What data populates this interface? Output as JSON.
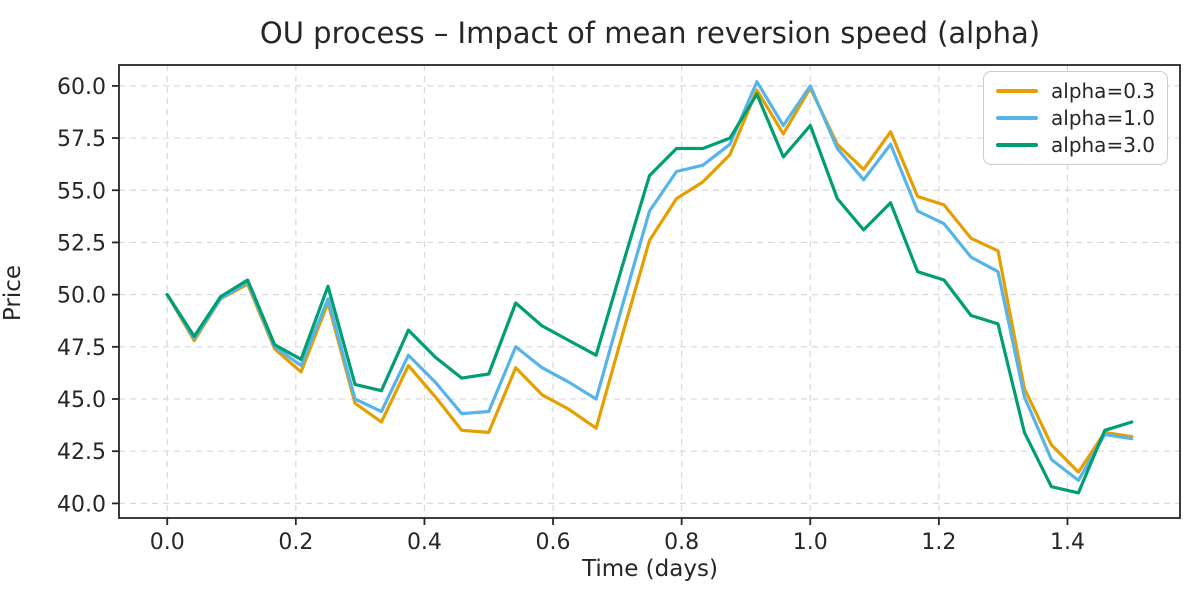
{
  "title": "OU process – Impact of mean reversion speed (alpha)",
  "colors": {
    "background": "#ffffff",
    "text": "#262626",
    "spine": "#262626",
    "grid": "#d9d9d9",
    "legend_border": "#cccccc",
    "series_orange": "#E69F00",
    "series_blue": "#56B4E9",
    "series_green": "#009E73"
  },
  "chart_data": {
    "type": "line",
    "title": "OU process – Impact of mean reversion speed (alpha)",
    "xlabel": "Time (days)",
    "ylabel": "Price",
    "xlim": [
      -0.075,
      1.575
    ],
    "ylim": [
      39.3,
      61.0
    ],
    "grid": true,
    "grid_style": "dashed",
    "legend_position": "upper right",
    "xticks": [
      0.0,
      0.2,
      0.4,
      0.6,
      0.8,
      1.0,
      1.2,
      1.4
    ],
    "xtick_labels": [
      "0.0",
      "0.2",
      "0.4",
      "0.6",
      "0.8",
      "1.0",
      "1.2",
      "1.4"
    ],
    "yticks": [
      40.0,
      42.5,
      45.0,
      47.5,
      50.0,
      52.5,
      55.0,
      57.5,
      60.0
    ],
    "ytick_labels": [
      "40.0",
      "42.5",
      "45.0",
      "47.5",
      "50.0",
      "52.5",
      "55.0",
      "57.5",
      "60.0"
    ],
    "x": [
      0.0,
      0.042,
      0.083,
      0.125,
      0.167,
      0.208,
      0.25,
      0.292,
      0.333,
      0.375,
      0.417,
      0.458,
      0.5,
      0.542,
      0.583,
      0.625,
      0.667,
      0.708,
      0.75,
      0.792,
      0.833,
      0.875,
      0.917,
      0.958,
      1.0,
      1.042,
      1.083,
      1.125,
      1.167,
      1.208,
      1.25,
      1.292,
      1.333,
      1.375,
      1.417,
      1.458,
      1.5
    ],
    "series": [
      {
        "name": "alpha=0.3",
        "color": "#E69F00",
        "values": [
          50.0,
          47.8,
          49.8,
          50.5,
          47.4,
          46.3,
          49.6,
          44.8,
          43.9,
          46.6,
          45.1,
          43.5,
          43.4,
          46.5,
          45.2,
          44.5,
          43.6,
          48.1,
          52.6,
          54.6,
          55.4,
          56.7,
          59.8,
          57.7,
          59.9,
          57.2,
          56.0,
          57.8,
          54.7,
          54.3,
          52.7,
          52.1,
          45.5,
          42.8,
          41.5,
          43.4,
          43.2
        ]
      },
      {
        "name": "alpha=1.0",
        "color": "#56B4E9",
        "values": [
          50.0,
          47.9,
          49.8,
          50.6,
          47.5,
          46.6,
          49.8,
          45.0,
          44.4,
          47.1,
          45.8,
          44.3,
          44.4,
          47.5,
          46.5,
          45.8,
          45.0,
          49.5,
          54.0,
          55.9,
          56.2,
          57.2,
          60.2,
          58.1,
          60.0,
          57.0,
          55.5,
          57.2,
          54.0,
          53.4,
          51.8,
          51.1,
          45.1,
          42.1,
          41.1,
          43.3,
          43.1
        ]
      },
      {
        "name": "alpha=3.0",
        "color": "#009E73",
        "values": [
          50.0,
          48.0,
          49.9,
          50.7,
          47.6,
          46.9,
          50.4,
          45.7,
          45.4,
          48.3,
          47.0,
          46.0,
          46.2,
          49.6,
          48.5,
          47.8,
          47.1,
          51.4,
          55.7,
          57.0,
          57.0,
          57.5,
          59.6,
          56.6,
          58.1,
          54.6,
          53.1,
          54.4,
          51.1,
          50.7,
          49.0,
          48.6,
          43.4,
          40.8,
          40.5,
          43.5,
          43.9
        ]
      }
    ]
  }
}
